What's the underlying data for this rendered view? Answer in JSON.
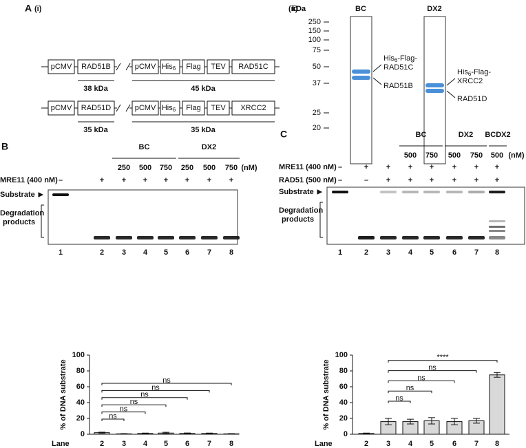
{
  "panel_a": {
    "label": "A",
    "sub_i": "(i)",
    "sub_ii": "(ii)",
    "constructs": [
      {
        "cassette1": [
          "pCMV",
          "RAD51B"
        ],
        "cassette2": [
          "pCMV",
          {
            "text": "His",
            "sub": "6"
          },
          "Flag",
          "TEV",
          "RAD51C"
        ],
        "size1": "38 kDa",
        "size2": "45 kDa"
      },
      {
        "cassette1": [
          "pCMV",
          "RAD51D"
        ],
        "cassette2": [
          "pCMV",
          {
            "text": "His",
            "sub": "6"
          },
          "Flag",
          "TEV",
          "XRCC2"
        ],
        "size1": "35 kDa",
        "size2": "35 kDa"
      }
    ],
    "gel": {
      "unit": "kDa",
      "markers": [
        "250",
        "150",
        "100",
        "75",
        "50",
        "37",
        "25",
        "20"
      ],
      "lanes": [
        "BC",
        "DX2"
      ],
      "bands": [
        {
          "upper": {
            "pre": "His",
            "sub": "6",
            "post": "-Flag-",
            "line2": "RAD51C"
          },
          "lower": "RAD51B"
        },
        {
          "upper": {
            "pre": "His",
            "sub": "6",
            "post": "-Flag-",
            "line2": "XRCC2"
          },
          "lower": "RAD51D"
        }
      ]
    }
  },
  "panel_b": {
    "label": "B",
    "groups": [
      "BC",
      "DX2"
    ],
    "concentrations": [
      "250",
      "500",
      "750",
      "250",
      "500",
      "750"
    ],
    "unit": "(nM)",
    "rows": [
      {
        "name": "MRE11 (400 nM)",
        "signs": [
          "–",
          "+",
          "+",
          "+",
          "+",
          "+",
          "+",
          "+"
        ]
      }
    ],
    "substrate": "Substrate",
    "products": [
      "Degradation",
      "products"
    ],
    "lanes": [
      "1",
      "2",
      "3",
      "4",
      "5",
      "6",
      "7",
      "8"
    ]
  },
  "panel_c": {
    "label": "C",
    "groups": [
      "BC",
      "DX2",
      "BCDX2"
    ],
    "concentrations": [
      "500",
      "750",
      "500",
      "750",
      "500"
    ],
    "unit": "(nM)",
    "rows": [
      {
        "name": "MRE11 (400 nM)",
        "signs": [
          "–",
          "+",
          "+",
          "+",
          "+",
          "+",
          "+",
          "+"
        ]
      },
      {
        "name": "RAD51 (500 nM)",
        "signs": [
          "–",
          "–",
          "+",
          "+",
          "+",
          "+",
          "+",
          "+"
        ]
      }
    ],
    "substrate": "Substrate",
    "products": [
      "Degradation",
      "products"
    ],
    "lanes": [
      "1",
      "2",
      "3",
      "4",
      "5",
      "6",
      "7",
      "8"
    ]
  },
  "chart_data": [
    {
      "type": "bar",
      "ylabel": "% of DNA substrate",
      "xlabel": "Lane",
      "categories": [
        "2",
        "3",
        "4",
        "5",
        "6",
        "7",
        "8"
      ],
      "values": [
        2,
        0.5,
        1,
        1.5,
        1,
        1,
        0.5
      ],
      "errors": [
        0.6,
        0.3,
        0.5,
        1,
        0.6,
        0.5,
        0.3
      ],
      "color": "#d9d9d9",
      "ylim": [
        0,
        100
      ],
      "yticks": [
        0,
        20,
        40,
        60,
        80,
        100
      ],
      "annotations": [
        {
          "text": "ns",
          "from": "2",
          "to": "3"
        },
        {
          "text": "ns",
          "from": "2",
          "to": "4"
        },
        {
          "text": "ns",
          "from": "2",
          "to": "5"
        },
        {
          "text": "ns",
          "from": "2",
          "to": "6"
        },
        {
          "text": "ns",
          "from": "2",
          "to": "7"
        },
        {
          "text": "ns",
          "from": "2",
          "to": "8"
        }
      ]
    },
    {
      "type": "bar",
      "ylabel": "% of DNA substrate",
      "xlabel": "Lane",
      "categories": [
        "2",
        "3",
        "4",
        "5",
        "6",
        "7",
        "8"
      ],
      "values": [
        1,
        16,
        16,
        17,
        16,
        17,
        75
      ],
      "errors": [
        0.5,
        4,
        3,
        4,
        4,
        3,
        3
      ],
      "color": "#d9d9d9",
      "ylim": [
        0,
        100
      ],
      "yticks": [
        0,
        20,
        40,
        60,
        80,
        100
      ],
      "annotations": [
        {
          "text": "ns",
          "from": "3",
          "to": "4"
        },
        {
          "text": "ns",
          "from": "3",
          "to": "5"
        },
        {
          "text": "ns",
          "from": "3",
          "to": "6"
        },
        {
          "text": "ns",
          "from": "3",
          "to": "7"
        },
        {
          "text": "****",
          "from": "3",
          "to": "8"
        }
      ]
    }
  ]
}
